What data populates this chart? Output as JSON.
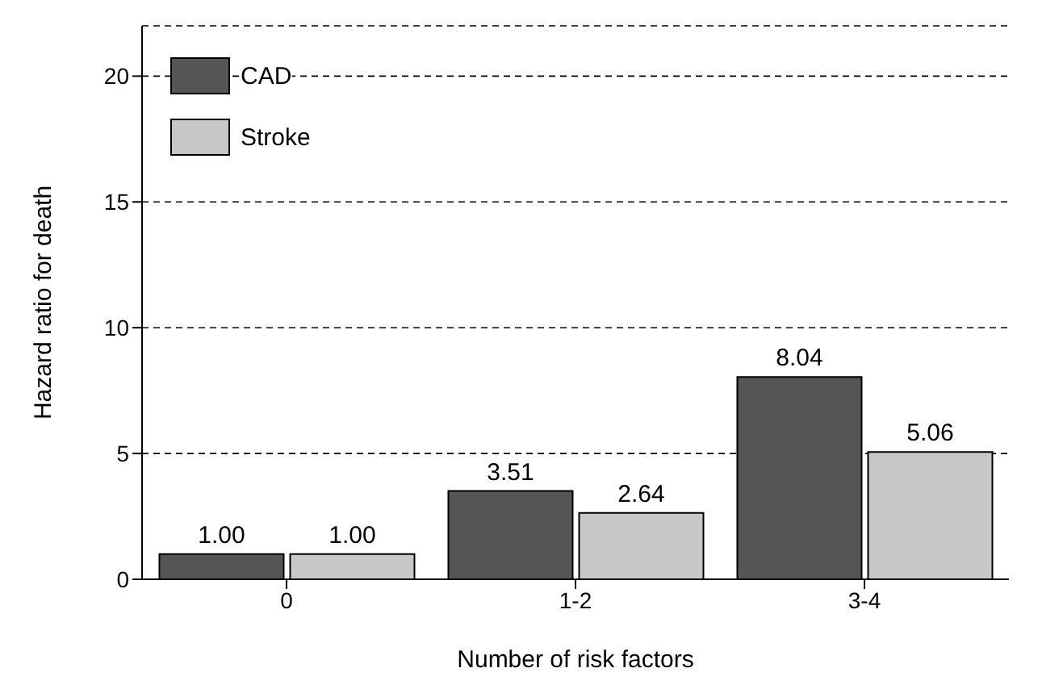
{
  "chart_data": {
    "type": "bar",
    "xlabel": "Number of risk factors",
    "ylabel": "Hazard ratio for death",
    "categories": [
      "0",
      "1-2",
      "3-4"
    ],
    "series": [
      {
        "name": "CAD",
        "color": "#555555",
        "values": [
          1.0,
          3.51,
          8.04
        ],
        "value_labels": [
          "1.00",
          "3.51",
          "8.04"
        ]
      },
      {
        "name": "Stroke",
        "color": "#c8c8c8",
        "values": [
          1.0,
          2.64,
          5.06
        ],
        "value_labels": [
          "1.00",
          "2.64",
          "5.06"
        ]
      }
    ],
    "ylim": [
      0,
      22
    ],
    "yticks": [
      0,
      5,
      10,
      15,
      20
    ],
    "grid": "y",
    "legend": "top left"
  }
}
